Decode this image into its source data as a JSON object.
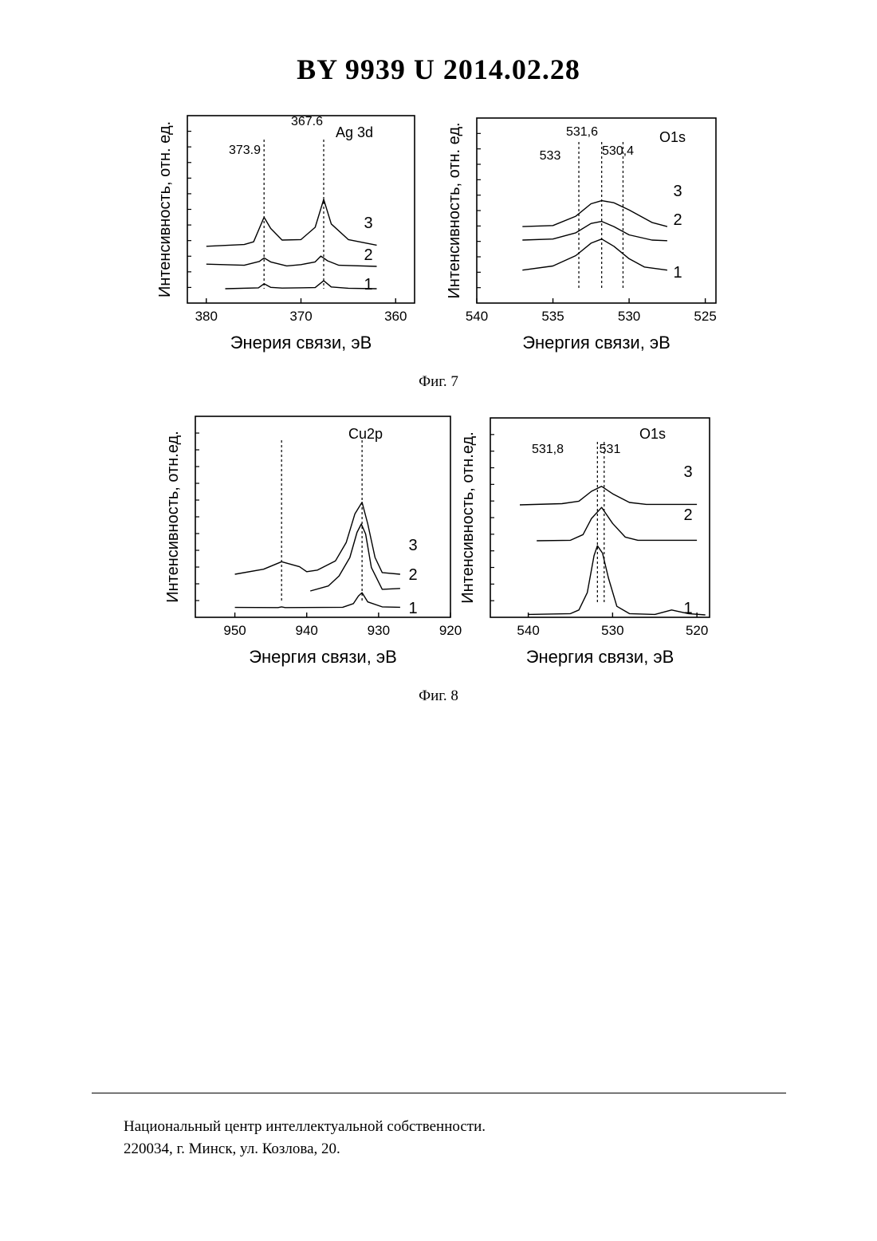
{
  "header": {
    "title": "BY  9939  U  2014.02.28"
  },
  "captions": {
    "fig7": "Фиг. 7",
    "fig8": "Фиг. 8"
  },
  "footer": {
    "line1": "Национальный центр интеллектуальной собственности.",
    "line2": "220034, г. Минск, ул. Козлова, 20."
  },
  "chart_data": [
    {
      "type": "line",
      "panel": "fig7-left",
      "label": "Ag 3d",
      "xlabel": "Энерия связи, эВ",
      "ylabel": "Интенсивность, отн. ед.",
      "xlim": [
        382,
        358
      ],
      "xticks": [
        380,
        370,
        360
      ],
      "tick_labels": [
        "380",
        "370",
        "360"
      ],
      "annotations": [
        "373.9",
        "367.6"
      ],
      "markers": [
        373.9,
        367.6
      ],
      "series": [
        {
          "name": "1",
          "offset": 0.0,
          "x": [
            378,
            374.5,
            373.9,
            373.2,
            372,
            368.5,
            367.6,
            366.8,
            365,
            362
          ],
          "y": [
            0,
            0.04,
            0.22,
            0.06,
            0.03,
            0.05,
            0.36,
            0.08,
            0.02,
            0
          ]
        },
        {
          "name": "2",
          "offset": 1.0,
          "x": [
            380,
            376,
            374.4,
            373.9,
            373.2,
            371.5,
            370,
            368.5,
            367.9,
            367.2,
            366,
            362
          ],
          "y": [
            0.1,
            0.05,
            0.22,
            0.38,
            0.2,
            0.02,
            0.08,
            0.2,
            0.46,
            0.25,
            0.05,
            0
          ]
        },
        {
          "name": "3",
          "offset": 1.9,
          "x": [
            380,
            376,
            375,
            373.9,
            373.2,
            372,
            370,
            368.5,
            367.6,
            366.8,
            365,
            362
          ],
          "y": [
            0,
            0.08,
            0.2,
            1.3,
            0.8,
            0.28,
            0.3,
            0.85,
            2.1,
            1.0,
            0.3,
            0.05
          ]
        }
      ]
    },
    {
      "type": "line",
      "panel": "fig7-right",
      "label": "O1s",
      "xlabel": "Энергия связи, эВ",
      "ylabel": "Интенсивность, отн. ед.",
      "xlim": [
        540,
        524.3
      ],
      "xticks": [
        540,
        535,
        530,
        525
      ],
      "tick_labels": [
        "540",
        "535",
        "530",
        "525"
      ],
      "annotations": [
        "533",
        "531,6",
        "530,4"
      ],
      "markers": [
        533.3,
        531.8,
        530.4
      ],
      "series": [
        {
          "name": "1",
          "offset": 0.0,
          "x": [
            537,
            535,
            533.5,
            532.5,
            531.8,
            531,
            530,
            529,
            527.5
          ],
          "y": [
            0.05,
            0.25,
            0.75,
            1.35,
            1.55,
            1.2,
            0.6,
            0.2,
            0.05
          ]
        },
        {
          "name": "2",
          "offset": 1.45,
          "x": [
            537,
            535,
            533.5,
            532.5,
            531.8,
            531,
            530,
            528.5,
            527.5
          ],
          "y": [
            0.05,
            0.1,
            0.4,
            0.85,
            0.95,
            0.7,
            0.3,
            0.05,
            0.02
          ]
        },
        {
          "name": "3",
          "offset": 2.1,
          "x": [
            537,
            535,
            533.5,
            532.5,
            531.8,
            531,
            530,
            528.5,
            527.5
          ],
          "y": [
            0.05,
            0.1,
            0.55,
            1.15,
            1.3,
            1.2,
            0.85,
            0.25,
            0.05
          ]
        }
      ]
    },
    {
      "type": "line",
      "panel": "fig8-left",
      "label": "Cu2p",
      "xlabel": "Энергия связи, эВ",
      "ylabel": "Интенсивность, отн.ед.",
      "xlim": [
        955.5,
        920
      ],
      "xticks": [
        950,
        940,
        930,
        920
      ],
      "tick_labels": [
        "950",
        "940",
        "930",
        "920"
      ],
      "markers": [
        943.5,
        932.3
      ],
      "series": [
        {
          "name": "1",
          "offset": 0.0,
          "x": [
            950,
            944,
            943.5,
            943,
            935,
            933.5,
            932.8,
            932.3,
            931.5,
            929.5,
            927
          ],
          "y": [
            0.02,
            0.01,
            0.05,
            0.01,
            0.03,
            0.25,
            0.7,
            0.9,
            0.35,
            0.05,
            0.03
          ]
        },
        {
          "name": "2",
          "offset": 0.9,
          "x": [
            939.5,
            937,
            935.5,
            934,
            933,
            932.4,
            931.8,
            931,
            929.5,
            927
          ],
          "y": [
            0.1,
            0.4,
            1.0,
            2.1,
            3.6,
            4.1,
            3.5,
            1.5,
            0.2,
            0.25
          ]
        },
        {
          "name": "3",
          "offset": 2.0,
          "x": [
            950,
            946,
            943.5,
            941,
            940,
            938.5,
            936,
            934.5,
            933.3,
            932.3,
            931.5,
            930.5,
            929.5,
            927
          ],
          "y": [
            0.0,
            0.3,
            0.75,
            0.45,
            0.15,
            0.25,
            0.8,
            1.9,
            3.6,
            4.3,
            3.0,
            1.0,
            0.1,
            0.0
          ]
        }
      ]
    },
    {
      "type": "line",
      "panel": "fig8-right",
      "label": "O1s",
      "xlabel": "Энергия связи, эВ",
      "ylabel": "Интенсивность, отн.ед.",
      "xlim": [
        544.5,
        518.5
      ],
      "xticks": [
        540,
        530,
        520
      ],
      "tick_labels": [
        "540",
        "530",
        "520"
      ],
      "annotations": [
        "531,8",
        "531"
      ],
      "markers": [
        531.8,
        531
      ],
      "series": [
        {
          "name": "1",
          "offset": 0.0,
          "x": [
            540,
            535,
            534,
            533,
            532.2,
            531.8,
            531.2,
            530.5,
            529.5,
            528,
            525,
            523,
            521,
            519
          ],
          "y": [
            0.02,
            0.05,
            0.2,
            0.9,
            2.4,
            2.8,
            2.5,
            1.5,
            0.35,
            0.05,
            0.02,
            0.2,
            0.05,
            0.0
          ]
        },
        {
          "name": "2",
          "offset": 3.0,
          "x": [
            539,
            535,
            533.5,
            532.5,
            531.3,
            530,
            528.5,
            527,
            520
          ],
          "y": [
            0.0,
            0.02,
            0.25,
            0.9,
            1.35,
            0.7,
            0.15,
            0.02,
            0.02
          ]
        },
        {
          "name": "3",
          "offset": 4.45,
          "x": [
            541,
            536,
            534,
            532.5,
            531.3,
            530,
            528,
            526,
            520
          ],
          "y": [
            0.0,
            0.05,
            0.15,
            0.55,
            0.75,
            0.45,
            0.1,
            0.02,
            0.02
          ]
        }
      ]
    }
  ]
}
